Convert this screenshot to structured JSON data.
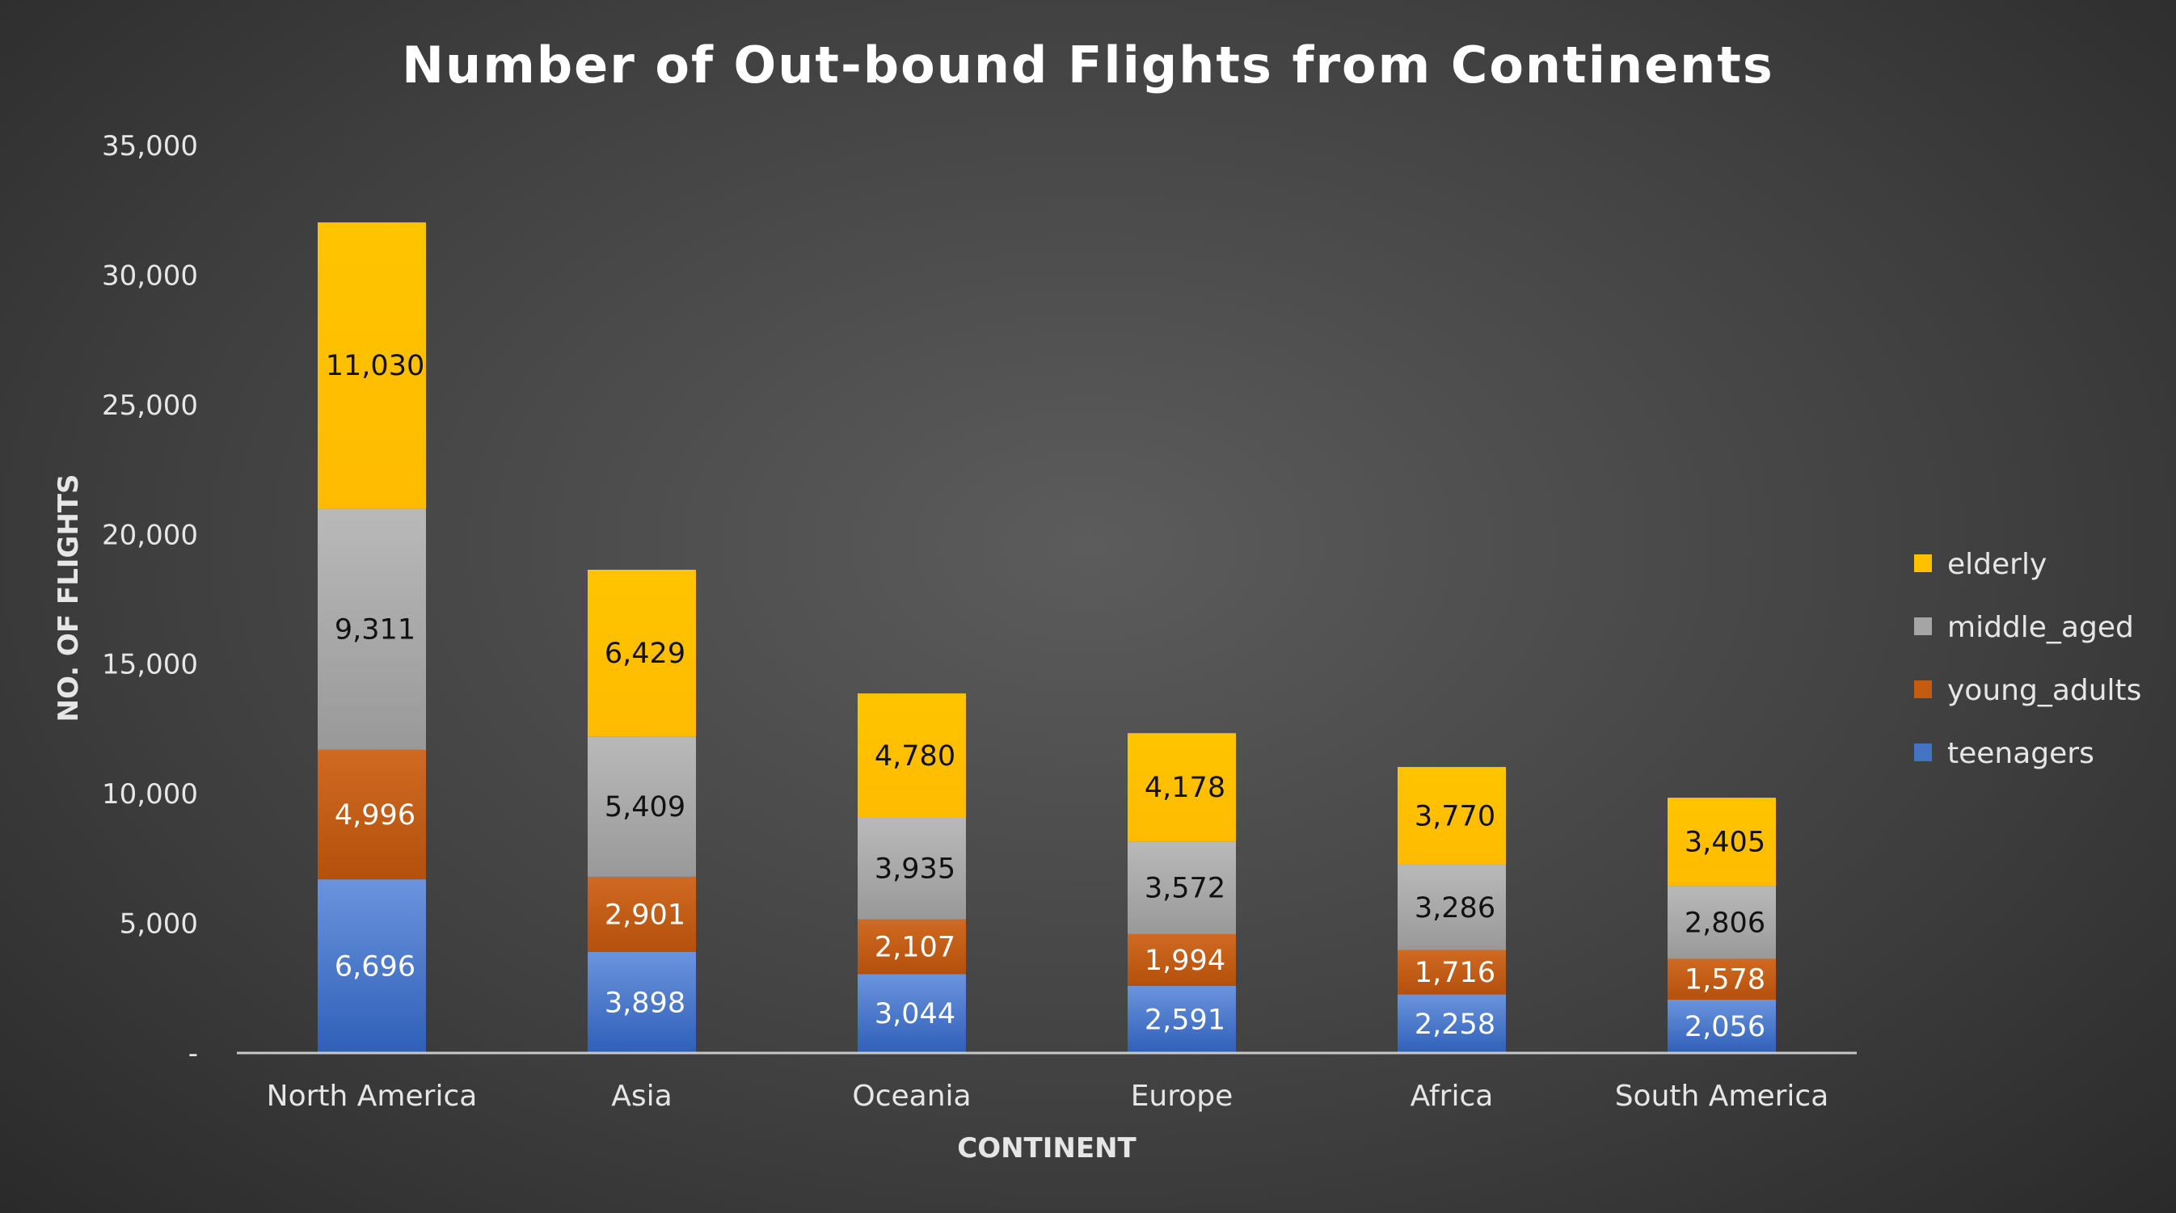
{
  "chart_data": {
    "type": "bar",
    "stacked": true,
    "title": "Number of Out-bound Flights from Continents",
    "xlabel": "CONTINENT",
    "ylabel": "NO. OF FLIGHTS",
    "ylim": [
      0,
      35000
    ],
    "yticks": [
      0,
      5000,
      10000,
      15000,
      20000,
      25000,
      30000,
      35000
    ],
    "ytick_labels": [
      "-",
      "5,000",
      "10,000",
      "15,000",
      "20,000",
      "25,000",
      "30,000",
      "35,000"
    ],
    "grid": false,
    "legend_position": "right",
    "categories": [
      "North America",
      "Asia",
      "Oceania",
      "Europe",
      "Africa",
      "South America"
    ],
    "series": [
      {
        "name": "teenagers",
        "color": "#4472c4",
        "label_color": "#ffffff",
        "values": [
          6696,
          3898,
          3044,
          2591,
          2258,
          2056
        ],
        "labels": [
          "6,696",
          "3,898",
          "3,044",
          "2,591",
          "2,258",
          "2,056"
        ]
      },
      {
        "name": "young_adults",
        "color": "#c55a11",
        "label_color": "#ffffff",
        "values": [
          4996,
          2901,
          2107,
          1994,
          1716,
          1578
        ],
        "labels": [
          "4,996",
          "2,901",
          "2,107",
          "1,994",
          "1,716",
          "1,578"
        ]
      },
      {
        "name": "middle_aged",
        "color": "#a5a5a5",
        "label_color": "#111111",
        "values": [
          9311,
          5409,
          3935,
          3572,
          3286,
          2806
        ],
        "labels": [
          "9,311",
          "5,409",
          "3,935",
          "3,572",
          "3,286",
          "2,806"
        ]
      },
      {
        "name": "elderly",
        "color": "#ffc000",
        "label_color": "#111111",
        "values": [
          11030,
          6429,
          4780,
          4178,
          3770,
          3405
        ],
        "labels": [
          "11,030",
          "6,429",
          "4,780",
          "4,178",
          "3,770",
          "3,405"
        ]
      }
    ],
    "legend_order": [
      "elderly",
      "middle_aged",
      "young_adults",
      "teenagers"
    ]
  }
}
